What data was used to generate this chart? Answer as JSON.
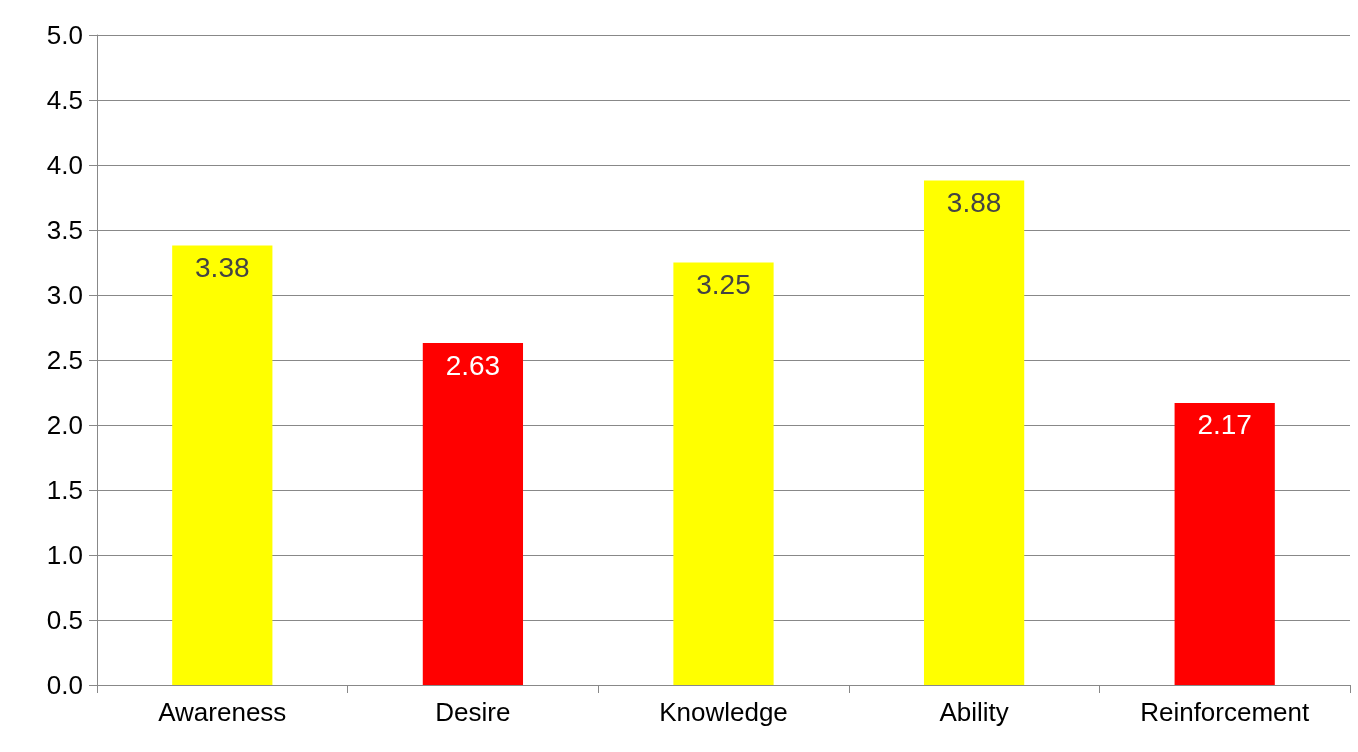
{
  "chart_data": {
    "type": "bar",
    "categories": [
      "Awareness",
      "Desire",
      "Knowledge",
      "Ability",
      "Reinforcement"
    ],
    "values": [
      3.38,
      2.63,
      3.25,
      3.88,
      2.17
    ],
    "colors": [
      "#ffff00",
      "#ff0000",
      "#ffff00",
      "#ffff00",
      "#ff0000"
    ],
    "ylim": [
      0,
      5
    ],
    "yticks": [
      {
        "value": 0,
        "label": "0.0"
      },
      {
        "value": 0.5,
        "label": "0.5"
      },
      {
        "value": 1,
        "label": "1.0"
      },
      {
        "value": 1.5,
        "label": "1.5"
      },
      {
        "value": 2,
        "label": "2.0"
      },
      {
        "value": 2.5,
        "label": "2.5"
      },
      {
        "value": 3,
        "label": "3.0"
      },
      {
        "value": 3.5,
        "label": "3.5"
      },
      {
        "value": 4,
        "label": "4.0"
      },
      {
        "value": 4.5,
        "label": "4.5"
      },
      {
        "value": 5,
        "label": "5.0"
      }
    ],
    "grid": "y",
    "data_labels": true
  }
}
